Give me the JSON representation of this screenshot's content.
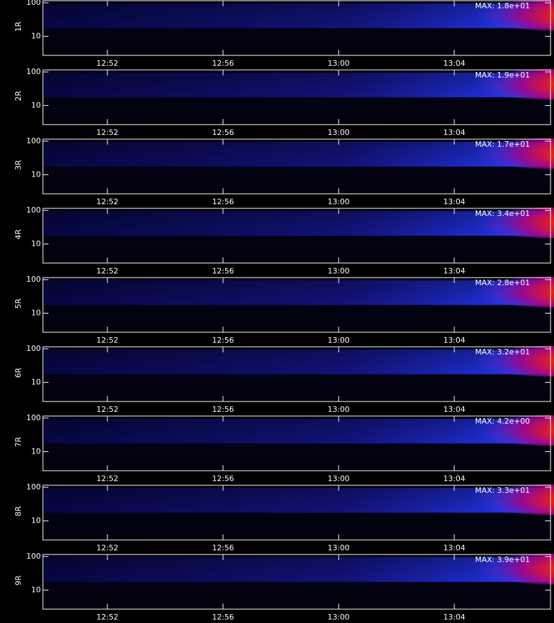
{
  "chart_data": [
    {
      "type": "spectrogram",
      "ylabel": "1R",
      "annotation": "MAX: 1.8e+01",
      "log_y": true,
      "ylim": [
        2.7,
        115
      ],
      "yticks": [
        10,
        100
      ],
      "xlim": [
        769.77,
        787.33
      ],
      "xticks": [
        {
          "value": 772,
          "label": "12:52"
        },
        {
          "value": 776,
          "label": "12:56"
        },
        {
          "value": 780,
          "label": "13:00"
        },
        {
          "value": 784,
          "label": "13:04"
        }
      ]
    },
    {
      "type": "spectrogram",
      "ylabel": "2R",
      "annotation": "MAX: 1.9e+01",
      "log_y": true,
      "ylim": [
        2.7,
        115
      ],
      "yticks": [
        10,
        100
      ],
      "xlim": [
        769.77,
        787.33
      ],
      "xticks": [
        {
          "value": 772,
          "label": "12:52"
        },
        {
          "value": 776,
          "label": "12:56"
        },
        {
          "value": 780,
          "label": "13:00"
        },
        {
          "value": 784,
          "label": "13:04"
        }
      ]
    },
    {
      "type": "spectrogram",
      "ylabel": "3R",
      "annotation": "MAX: 1.7e+01",
      "log_y": true,
      "ylim": [
        2.7,
        115
      ],
      "yticks": [
        10,
        100
      ],
      "xlim": [
        769.77,
        787.33
      ],
      "xticks": [
        {
          "value": 772,
          "label": "12:52"
        },
        {
          "value": 776,
          "label": "12:56"
        },
        {
          "value": 780,
          "label": "13:00"
        },
        {
          "value": 784,
          "label": "13:04"
        }
      ]
    },
    {
      "type": "spectrogram",
      "ylabel": "4R",
      "annotation": "MAX: 3.4e+01",
      "log_y": true,
      "ylim": [
        2.7,
        115
      ],
      "yticks": [
        10,
        100
      ],
      "xlim": [
        769.77,
        787.33
      ],
      "xticks": [
        {
          "value": 772,
          "label": "12:52"
        },
        {
          "value": 776,
          "label": "12:56"
        },
        {
          "value": 780,
          "label": "13:00"
        },
        {
          "value": 784,
          "label": "13:04"
        }
      ]
    },
    {
      "type": "spectrogram",
      "ylabel": "5R",
      "annotation": "MAX: 2.8e+01",
      "log_y": true,
      "ylim": [
        2.7,
        115
      ],
      "yticks": [
        10,
        100
      ],
      "xlim": [
        769.77,
        787.33
      ],
      "xticks": [
        {
          "value": 772,
          "label": "12:52"
        },
        {
          "value": 776,
          "label": "12:56"
        },
        {
          "value": 780,
          "label": "13:00"
        },
        {
          "value": 784,
          "label": "13:04"
        }
      ]
    },
    {
      "type": "spectrogram",
      "ylabel": "6R",
      "annotation": "MAX: 3.2e+01",
      "log_y": true,
      "ylim": [
        2.7,
        115
      ],
      "yticks": [
        10,
        100
      ],
      "xlim": [
        769.77,
        787.33
      ],
      "xticks": [
        {
          "value": 772,
          "label": "12:52"
        },
        {
          "value": 776,
          "label": "12:56"
        },
        {
          "value": 780,
          "label": "13:00"
        },
        {
          "value": 784,
          "label": "13:04"
        }
      ]
    },
    {
      "type": "spectrogram",
      "ylabel": "7R",
      "annotation": "MAX: 4.2e+00",
      "log_y": true,
      "ylim": [
        2.7,
        115
      ],
      "yticks": [
        10,
        100
      ],
      "xlim": [
        769.77,
        787.33
      ],
      "xticks": [
        {
          "value": 772,
          "label": "12:52"
        },
        {
          "value": 776,
          "label": "12:56"
        },
        {
          "value": 780,
          "label": "13:00"
        },
        {
          "value": 784,
          "label": "13:04"
        }
      ]
    },
    {
      "type": "spectrogram",
      "ylabel": "8R",
      "annotation": "MAX: 3.3e+01",
      "log_y": true,
      "ylim": [
        2.7,
        115
      ],
      "yticks": [
        10,
        100
      ],
      "xlim": [
        769.77,
        787.33
      ],
      "xticks": [
        {
          "value": 772,
          "label": "12:52"
        },
        {
          "value": 776,
          "label": "12:56"
        },
        {
          "value": 780,
          "label": "13:00"
        },
        {
          "value": 784,
          "label": "13:04"
        }
      ]
    },
    {
      "type": "spectrogram",
      "ylabel": "9R",
      "annotation": "MAX: 3.9e+01",
      "log_y": true,
      "ylim": [
        2.7,
        115
      ],
      "yticks": [
        10,
        100
      ],
      "xlim": [
        769.77,
        787.33
      ],
      "xticks": [
        {
          "value": 772,
          "label": "12:52"
        },
        {
          "value": 776,
          "label": "12:56"
        },
        {
          "value": 780,
          "label": "13:00"
        },
        {
          "value": 784,
          "label": "13:04"
        }
      ]
    }
  ]
}
